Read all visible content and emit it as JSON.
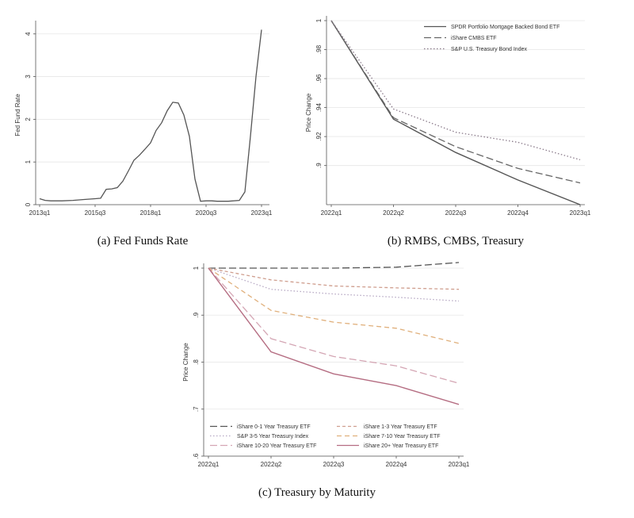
{
  "figure": {
    "captions": [
      "(a) Fed Funds Rate",
      "(b) RMBS, CMBS, Treasury",
      "(c) Treasury by Maturity"
    ]
  },
  "chart_data": [
    {
      "type": "line",
      "ylabel": "Fed Fund Rate",
      "xlabel": "",
      "x_ticks": [
        "2013q1",
        "2015q3",
        "2018q1",
        "2020q3",
        "2023q1"
      ],
      "y_ticks": [
        "0",
        "1",
        "2",
        "3",
        "4"
      ],
      "ylim": [
        0,
        4.2
      ],
      "grid": true,
      "color": "#555555",
      "series": [
        {
          "x": [
            2013.0,
            2013.25,
            2013.5,
            2014.0,
            2014.5,
            2015.0,
            2015.5,
            2015.75,
            2016.0,
            2016.25,
            2016.5,
            2016.75,
            2017.0,
            2017.25,
            2017.5,
            2017.75,
            2018.0,
            2018.25,
            2018.5,
            2018.75,
            2019.0,
            2019.25,
            2019.5,
            2019.75,
            2020.0,
            2020.25,
            2020.5,
            2020.75,
            2021.0,
            2021.5,
            2022.0,
            2022.25,
            2022.5,
            2022.75,
            2023.0
          ],
          "y": [
            0.14,
            0.1,
            0.09,
            0.09,
            0.1,
            0.12,
            0.14,
            0.15,
            0.36,
            0.37,
            0.4,
            0.55,
            0.79,
            1.04,
            1.16,
            1.3,
            1.45,
            1.74,
            1.92,
            2.2,
            2.4,
            2.38,
            2.1,
            1.6,
            0.6,
            0.08,
            0.09,
            0.09,
            0.08,
            0.08,
            0.1,
            0.3,
            1.6,
            3.0,
            4.1
          ]
        }
      ]
    },
    {
      "type": "line",
      "ylabel": "Price Change",
      "xlabel": "",
      "categories": [
        "2022q1",
        "2022q2",
        "2022q3",
        "2022q4",
        "2023q1"
      ],
      "y_ticks": [
        ".9",
        ".92",
        ".94",
        ".96",
        ".98",
        "1"
      ],
      "ylim": [
        0.873,
        1.0
      ],
      "grid": true,
      "legend_position": "top-right",
      "series": [
        {
          "name": "SPDR Portfolio Mortgage Backed Bond ETF",
          "values": [
            1.0,
            0.932,
            0.909,
            0.89,
            0.873
          ],
          "color": "#555555",
          "dash": "solid"
        },
        {
          "name": "iShare CMBS ETF",
          "values": [
            1.0,
            0.933,
            0.913,
            0.898,
            0.888
          ],
          "color": "#666666",
          "dash": "long-dash"
        },
        {
          "name": "S&P U.S. Treasury Bond Index",
          "values": [
            1.0,
            0.939,
            0.923,
            0.916,
            0.904
          ],
          "color": "#8a7a8a",
          "dash": "dotted"
        }
      ]
    },
    {
      "type": "line",
      "ylabel": "Price Change",
      "xlabel": "",
      "categories": [
        "2022q1",
        "2022q2",
        "2022q3",
        "2022q4",
        "2023q1"
      ],
      "y_ticks": [
        ".6",
        ".7",
        ".8",
        ".9",
        "1"
      ],
      "ylim": [
        0.6,
        1.0
      ],
      "grid": true,
      "legend_position": "bottom",
      "series": [
        {
          "name": "iShare 0-1 Year Treasury ETF",
          "values": [
            1.0,
            1.0,
            1.0,
            1.002,
            1.012
          ],
          "color": "#555555",
          "dash": "long-dash"
        },
        {
          "name": "iShare 1-3 Year Treasury ETF",
          "values": [
            1.0,
            0.975,
            0.962,
            0.958,
            0.955
          ],
          "color": "#cf9e8e",
          "dash": "short-dash"
        },
        {
          "name": "S&P 3-5 Year Treasury Index",
          "values": [
            1.0,
            0.955,
            0.945,
            0.938,
            0.93
          ],
          "color": "#b7a9c4",
          "dash": "dotted"
        },
        {
          "name": "iShare 7-10 Year Treasury ETF",
          "values": [
            1.0,
            0.91,
            0.885,
            0.872,
            0.84
          ],
          "color": "#e0b07c",
          "dash": "dashed"
        },
        {
          "name": "iShare 10-20 Year Treasury ETF",
          "values": [
            1.0,
            0.85,
            0.812,
            0.792,
            0.755
          ],
          "color": "#d4a6b4",
          "dash": "long-dash"
        },
        {
          "name": "iShare 20+ Year Treasury ETF",
          "values": [
            1.0,
            0.822,
            0.775,
            0.75,
            0.71
          ],
          "color": "#b56d82",
          "dash": "solid"
        }
      ]
    }
  ]
}
